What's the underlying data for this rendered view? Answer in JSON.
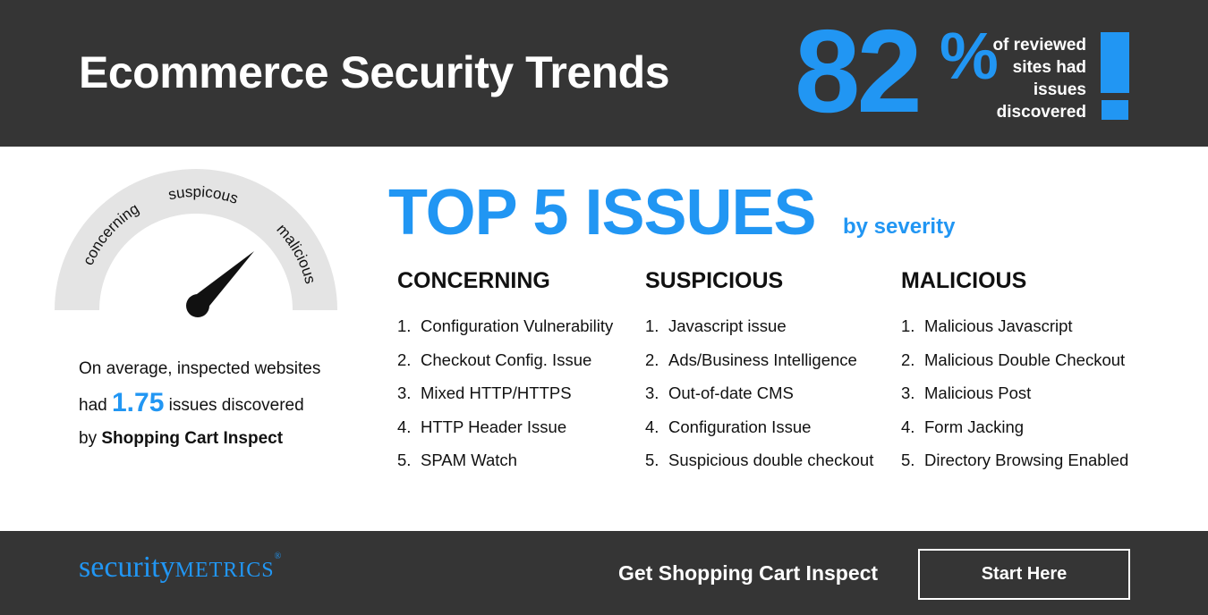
{
  "header": {
    "title": "Ecommerce Security Trends",
    "stat_number": "82",
    "stat_percent": "%",
    "stat_caption": [
      "of reviewed",
      "sites had",
      "issues",
      "discovered"
    ],
    "exclamation_icon": "exclamation-icon"
  },
  "gauge": {
    "labels": [
      "concerning",
      "suspicous",
      "malicious"
    ],
    "needle_icon": "gauge-needle-icon"
  },
  "average": {
    "line1": "On average, inspected websites",
    "line2_prefix": "had ",
    "value": "1.75",
    "line2_suffix": " issues discovered",
    "line3_prefix": "by ",
    "line3_brand": "Shopping Cart Inspect"
  },
  "top5": {
    "title": "TOP 5 ISSUES",
    "subtitle": "by severity"
  },
  "columns": [
    {
      "heading": "CONCERNING",
      "items": [
        {
          "num": "1.",
          "label": "Configuration Vulnerability"
        },
        {
          "num": "2.",
          "label": "Checkout Config. Issue"
        },
        {
          "num": "3.",
          "label": "Mixed HTTP/HTTPS"
        },
        {
          "num": "4.",
          "label": "HTTP Header Issue"
        },
        {
          "num": "5.",
          "label": "SPAM Watch"
        }
      ]
    },
    {
      "heading": "SUSPICIOUS",
      "items": [
        {
          "num": "1.",
          "label": "Javascript issue"
        },
        {
          "num": "2.",
          "label": "Ads/Business Intelligence"
        },
        {
          "num": "3.",
          "label": "Out-of-date CMS"
        },
        {
          "num": "4.",
          "label": "Configuration Issue"
        },
        {
          "num": "5.",
          "label": "Suspicious double checkout"
        }
      ]
    },
    {
      "heading": "MALICIOUS",
      "items": [
        {
          "num": "1.",
          "label": "Malicious Javascript"
        },
        {
          "num": "2.",
          "label": "Malicious Double Checkout"
        },
        {
          "num": "3.",
          "label": "Malicious Post"
        },
        {
          "num": "4.",
          "label": "Form Jacking"
        },
        {
          "num": "5.",
          "label": "Directory Browsing Enabled"
        }
      ]
    }
  ],
  "footer": {
    "logo_part1": "security",
    "logo_part2": "METRICS",
    "logo_reg": "®",
    "cta_text": "Get Shopping Cart Inspect",
    "cta_button": "Start Here"
  },
  "colors": {
    "accent": "#2196f3",
    "dark_band": "#353535",
    "gauge_track": "#e4e4e4"
  }
}
